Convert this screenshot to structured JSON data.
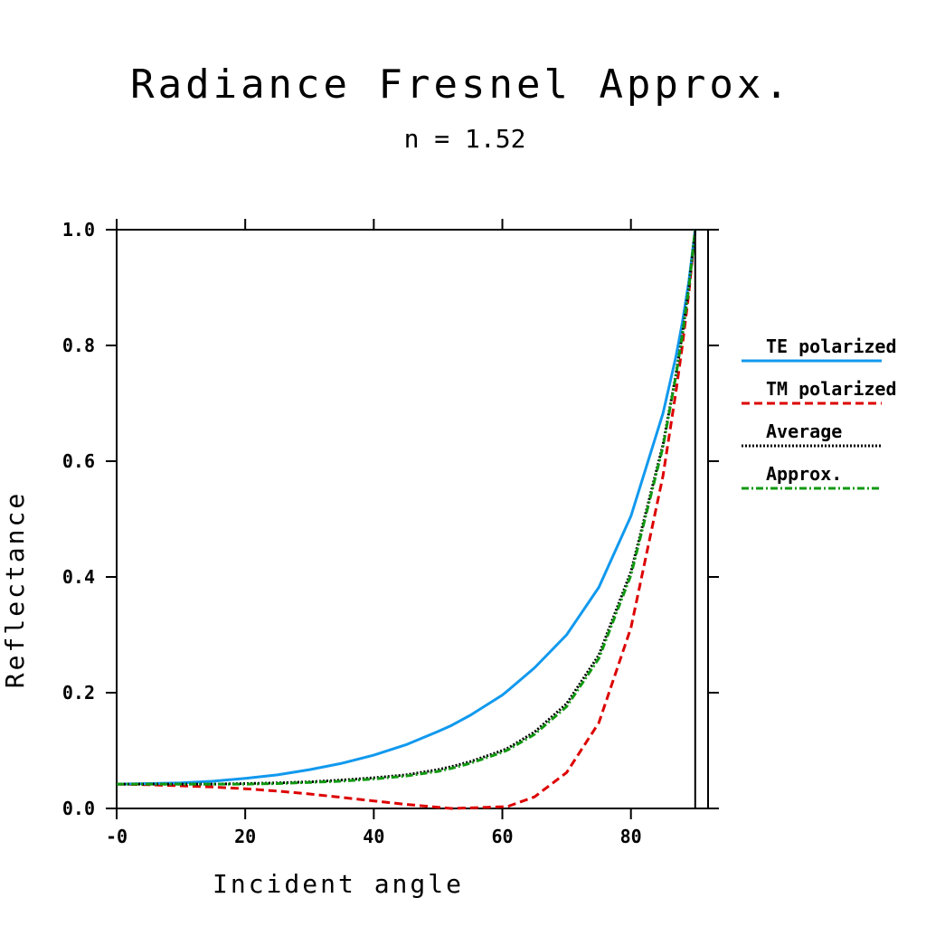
{
  "chart_data": {
    "type": "line",
    "title": "Radiance Fresnel Approx.",
    "subtitle": "n = 1.52",
    "xlabel": "Incident angle",
    "ylabel": "Reflectance",
    "xlim": [
      0,
      92
    ],
    "ylim": [
      0,
      1
    ],
    "x_ticks": [
      0,
      20,
      40,
      60,
      80
    ],
    "x_tick_labels": [
      "-0",
      "20",
      "40",
      "60",
      "80"
    ],
    "y_ticks": [
      0,
      0.2,
      0.4,
      0.6,
      0.8,
      1.0
    ],
    "y_tick_labels": [
      "0.0",
      "0.2",
      "0.4",
      "0.6",
      "0.8",
      "1.0"
    ],
    "grid": false,
    "legend_position": "right",
    "x": [
      0,
      5,
      10,
      15,
      20,
      25,
      30,
      35,
      40,
      45,
      50,
      52,
      55,
      60,
      61,
      65,
      70,
      75,
      80,
      85,
      87,
      88,
      89,
      90
    ],
    "series": [
      {
        "name": "TE polarized",
        "color": "#1199ee",
        "dash": "solid",
        "values": [
          0.042,
          0.043,
          0.044,
          0.047,
          0.052,
          0.058,
          0.067,
          0.078,
          0.092,
          0.11,
          0.133,
          0.143,
          0.161,
          0.196,
          0.205,
          0.243,
          0.3,
          0.382,
          0.505,
          0.683,
          0.781,
          0.84,
          0.91,
          1.0
        ]
      },
      {
        "name": "TM polarized",
        "color": "#dd0000",
        "dash": "dashed",
        "values": [
          0.042,
          0.041,
          0.039,
          0.037,
          0.034,
          0.03,
          0.025,
          0.019,
          0.013,
          0.007,
          0.002,
          0.0,
          0.001,
          0.003,
          0.004,
          0.02,
          0.062,
          0.148,
          0.312,
          0.575,
          0.72,
          0.8,
          0.89,
          1.0
        ]
      },
      {
        "name": "Average",
        "color": "#000000",
        "dash": "dotted",
        "values": [
          0.042,
          0.042,
          0.042,
          0.042,
          0.043,
          0.044,
          0.046,
          0.049,
          0.053,
          0.058,
          0.067,
          0.072,
          0.081,
          0.1,
          0.105,
          0.132,
          0.181,
          0.265,
          0.409,
          0.629,
          0.75,
          0.82,
          0.9,
          1.0
        ]
      },
      {
        "name": "Approx.",
        "color": "#119911",
        "dash": "dashdot",
        "values": [
          0.042,
          0.042,
          0.042,
          0.042,
          0.042,
          0.043,
          0.045,
          0.047,
          0.051,
          0.056,
          0.064,
          0.069,
          0.078,
          0.097,
          0.102,
          0.128,
          0.176,
          0.259,
          0.403,
          0.625,
          0.748,
          0.818,
          0.898,
          1.0
        ]
      }
    ]
  }
}
